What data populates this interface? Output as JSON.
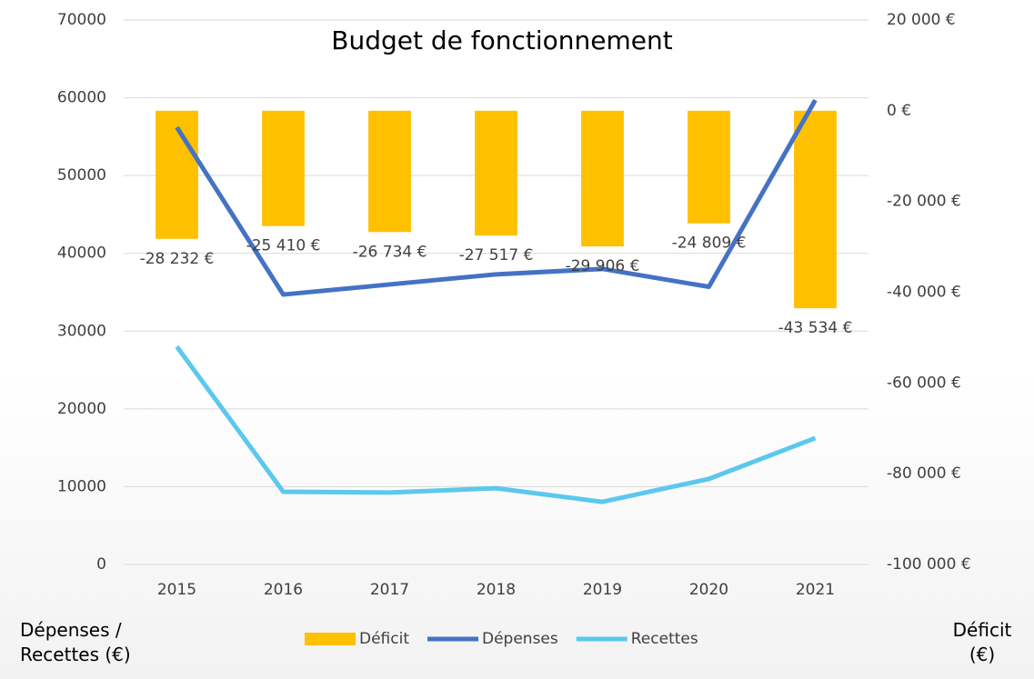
{
  "chart_data": {
    "type": "bar_line",
    "title": "Budget de fonctionnement",
    "y_label": "Dépenses / Recettes (€)",
    "y2_label": "Déficit (€)",
    "categories": [
      "2015",
      "2016",
      "2017",
      "2018",
      "2019",
      "2020",
      "2021"
    ],
    "ylim": [
      0,
      70000
    ],
    "yticks": [
      0,
      10000,
      20000,
      30000,
      40000,
      50000,
      60000,
      70000
    ],
    "y2lim": [
      -100000,
      20000
    ],
    "y2ticks": [
      {
        "value": -100000,
        "label": "-100 000 €"
      },
      {
        "value": -80000,
        "label": "-80 000 €"
      },
      {
        "value": -60000,
        "label": "-60 000 €"
      },
      {
        "value": -40000,
        "label": "-40 000 €"
      },
      {
        "value": -20000,
        "label": "-20 000 €"
      },
      {
        "value": 0,
        "label": "0 €"
      },
      {
        "value": 20000,
        "label": "20 000 €"
      }
    ],
    "grid": true,
    "legend": "bottom",
    "series": [
      {
        "name": "Déficit",
        "type": "bar",
        "axis": "y2",
        "color": "#ffc000",
        "values": [
          -28232,
          -25410,
          -26734,
          -27517,
          -29906,
          -24809,
          -43534
        ],
        "value_labels": [
          "-28 232 €",
          "-25 410 €",
          "-26 734 €",
          "-27 517 €",
          "-29 906 €",
          "-24 809 €",
          "-43 534 €"
        ]
      },
      {
        "name": "Dépenses",
        "type": "line",
        "color": "#4472c4",
        "values": [
          56200,
          34700,
          36000,
          37300,
          38000,
          35700,
          59700
        ]
      },
      {
        "name": "Recettes",
        "type": "line",
        "color": "#5bc8ee",
        "values": [
          28000,
          9350,
          9250,
          9800,
          8050,
          11000,
          16250
        ]
      }
    ]
  }
}
